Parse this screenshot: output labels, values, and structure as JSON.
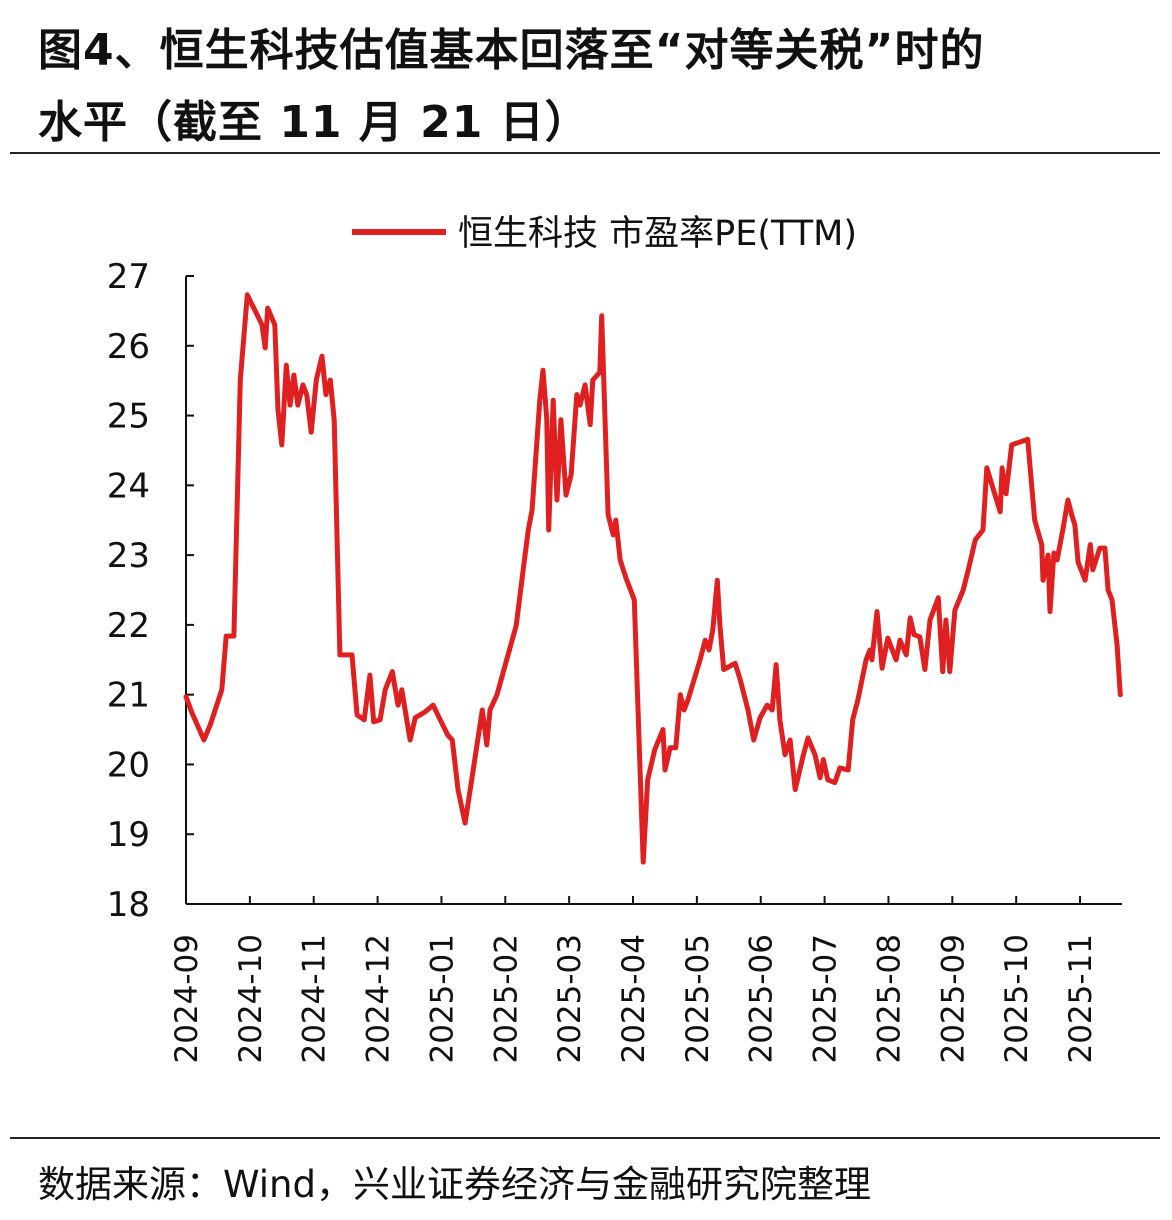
{
  "title_line1": "图4、恒生科技估值基本回落至“对等关税”时的",
  "title_line2": "水平（截至 11 月 21 日）",
  "source": "数据来源：Wind，兴业证券经济与金融研究院整理",
  "colors": {
    "line": "#e02020",
    "axis": "#111111"
  },
  "chart_data": {
    "type": "line",
    "title": "图4、恒生科技估值基本回落至“对等关税”时的水平（截至 11 月 21 日）",
    "xlabel": "",
    "ylabel": "",
    "x_unit": "months since 2024-09-01",
    "ylim": [
      18,
      27
    ],
    "yticks": [
      "18",
      "19",
      "20",
      "21",
      "22",
      "23",
      "24",
      "25",
      "26",
      "27"
    ],
    "xticks": [
      "2024-09",
      "2024-10",
      "2024-11",
      "2024-12",
      "2025-01",
      "2025-02",
      "2025-03",
      "2025-04",
      "2025-05",
      "2025-06",
      "2025-07",
      "2025-08",
      "2025-09",
      "2025-10",
      "2025-11"
    ],
    "grid": false,
    "legend_position": "top-center",
    "series": [
      {
        "name": "恒生科技 市盈率PE(TTM)",
        "points": [
          [
            0,
            20.97
          ],
          [
            0.09,
            20.75
          ],
          [
            0.28,
            20.35
          ],
          [
            0.38,
            20.57
          ],
          [
            0.56,
            21.07
          ],
          [
            0.63,
            21.84
          ],
          [
            0.75,
            21.84
          ],
          [
            0.78,
            22.93
          ],
          [
            0.85,
            25.51
          ],
          [
            0.96,
            26.73
          ],
          [
            1.19,
            26.3
          ],
          [
            1.24,
            25.97
          ],
          [
            1.28,
            26.54
          ],
          [
            1.39,
            26.3
          ],
          [
            1.44,
            25.08
          ],
          [
            1.5,
            24.58
          ],
          [
            1.57,
            25.72
          ],
          [
            1.63,
            25.15
          ],
          [
            1.69,
            25.58
          ],
          [
            1.75,
            25.15
          ],
          [
            1.83,
            25.44
          ],
          [
            1.89,
            25.3
          ],
          [
            1.96,
            24.76
          ],
          [
            2.04,
            25.51
          ],
          [
            2.13,
            25.85
          ],
          [
            2.19,
            25.3
          ],
          [
            2.26,
            25.51
          ],
          [
            2.32,
            24.94
          ],
          [
            2.41,
            21.57
          ],
          [
            2.6,
            21.57
          ],
          [
            2.68,
            20.71
          ],
          [
            2.79,
            20.64
          ],
          [
            2.88,
            21.28
          ],
          [
            2.94,
            20.61
          ],
          [
            3.04,
            20.64
          ],
          [
            3.12,
            21.07
          ],
          [
            3.23,
            21.33
          ],
          [
            3.32,
            20.85
          ],
          [
            3.38,
            21.07
          ],
          [
            3.51,
            20.35
          ],
          [
            3.59,
            20.67
          ],
          [
            3.74,
            20.75
          ],
          [
            3.87,
            20.85
          ],
          [
            3.98,
            20.64
          ],
          [
            4.1,
            20.42
          ],
          [
            4.17,
            20.35
          ],
          [
            4.26,
            19.64
          ],
          [
            4.37,
            19.16
          ],
          [
            4.45,
            19.64
          ],
          [
            4.64,
            20.78
          ],
          [
            4.71,
            20.28
          ],
          [
            4.76,
            20.78
          ],
          [
            4.87,
            21.0
          ],
          [
            5.17,
            21.99
          ],
          [
            5.29,
            22.86
          ],
          [
            5.36,
            23.36
          ],
          [
            5.42,
            23.65
          ],
          [
            5.54,
            25.22
          ],
          [
            5.59,
            25.65
          ],
          [
            5.65,
            24.94
          ],
          [
            5.68,
            23.36
          ],
          [
            5.75,
            25.22
          ],
          [
            5.81,
            23.79
          ],
          [
            5.87,
            24.94
          ],
          [
            5.95,
            23.86
          ],
          [
            6.03,
            24.15
          ],
          [
            6.12,
            25.3
          ],
          [
            6.17,
            25.15
          ],
          [
            6.25,
            25.44
          ],
          [
            6.33,
            24.87
          ],
          [
            6.37,
            25.51
          ],
          [
            6.48,
            25.62
          ],
          [
            6.51,
            26.43
          ],
          [
            6.61,
            23.58
          ],
          [
            6.69,
            23.29
          ],
          [
            6.73,
            23.5
          ],
          [
            6.8,
            22.93
          ],
          [
            6.89,
            22.67
          ],
          [
            7.02,
            22.36
          ],
          [
            7.16,
            18.6
          ],
          [
            7.23,
            19.78
          ],
          [
            7.34,
            20.21
          ],
          [
            7.47,
            20.5
          ],
          [
            7.5,
            19.92
          ],
          [
            7.58,
            20.24
          ],
          [
            7.67,
            20.24
          ],
          [
            7.74,
            21.0
          ],
          [
            7.8,
            20.78
          ],
          [
            7.86,
            20.92
          ],
          [
            8.05,
            21.5
          ],
          [
            8.13,
            21.78
          ],
          [
            8.19,
            21.64
          ],
          [
            8.25,
            21.93
          ],
          [
            8.32,
            22.64
          ],
          [
            8.36,
            22.0
          ],
          [
            8.42,
            21.36
          ],
          [
            8.6,
            21.45
          ],
          [
            8.68,
            21.21
          ],
          [
            8.8,
            20.78
          ],
          [
            8.89,
            20.35
          ],
          [
            8.99,
            20.67
          ],
          [
            9.1,
            20.85
          ],
          [
            9.18,
            20.78
          ],
          [
            9.24,
            21.43
          ],
          [
            9.3,
            20.64
          ],
          [
            9.38,
            20.14
          ],
          [
            9.46,
            20.35
          ],
          [
            9.54,
            19.64
          ],
          [
            9.62,
            19.95
          ],
          [
            9.66,
            20.11
          ],
          [
            9.74,
            20.38
          ],
          [
            9.85,
            20.14
          ],
          [
            9.93,
            19.81
          ],
          [
            9.98,
            20.07
          ],
          [
            10.05,
            19.78
          ],
          [
            10.16,
            19.74
          ],
          [
            10.24,
            19.95
          ],
          [
            10.37,
            19.92
          ],
          [
            10.44,
            20.64
          ],
          [
            10.52,
            20.92
          ],
          [
            10.65,
            21.5
          ],
          [
            10.71,
            21.64
          ],
          [
            10.74,
            21.5
          ],
          [
            10.82,
            22.19
          ],
          [
            10.9,
            21.38
          ],
          [
            10.99,
            21.81
          ],
          [
            11.12,
            21.5
          ],
          [
            11.18,
            21.78
          ],
          [
            11.28,
            21.57
          ],
          [
            11.34,
            22.1
          ],
          [
            11.4,
            21.86
          ],
          [
            11.49,
            21.83
          ],
          [
            11.57,
            21.36
          ],
          [
            11.65,
            22.07
          ],
          [
            11.78,
            22.39
          ],
          [
            11.85,
            21.33
          ],
          [
            11.9,
            22.07
          ],
          [
            11.96,
            21.33
          ],
          [
            12.04,
            22.21
          ],
          [
            12.17,
            22.5
          ],
          [
            12.25,
            22.79
          ],
          [
            12.36,
            23.22
          ],
          [
            12.48,
            23.36
          ],
          [
            12.54,
            24.25
          ],
          [
            12.62,
            24.01
          ],
          [
            12.75,
            23.62
          ],
          [
            12.78,
            24.25
          ],
          [
            12.84,
            23.88
          ],
          [
            12.93,
            24.58
          ],
          [
            13.18,
            24.66
          ],
          [
            13.29,
            23.5
          ],
          [
            13.4,
            23.15
          ],
          [
            13.42,
            22.64
          ],
          [
            13.5,
            23.0
          ],
          [
            13.53,
            22.19
          ],
          [
            13.59,
            23.03
          ],
          [
            13.64,
            22.93
          ],
          [
            13.73,
            23.36
          ],
          [
            13.81,
            23.79
          ],
          [
            13.87,
            23.58
          ],
          [
            13.92,
            23.43
          ],
          [
            13.97,
            22.9
          ],
          [
            14.08,
            22.64
          ],
          [
            14.16,
            23.15
          ],
          [
            14.2,
            22.79
          ],
          [
            14.31,
            23.1
          ],
          [
            14.39,
            23.1
          ],
          [
            14.44,
            22.5
          ],
          [
            14.5,
            22.36
          ],
          [
            14.58,
            21.71
          ],
          [
            14.63,
            21.0
          ]
        ]
      }
    ]
  }
}
